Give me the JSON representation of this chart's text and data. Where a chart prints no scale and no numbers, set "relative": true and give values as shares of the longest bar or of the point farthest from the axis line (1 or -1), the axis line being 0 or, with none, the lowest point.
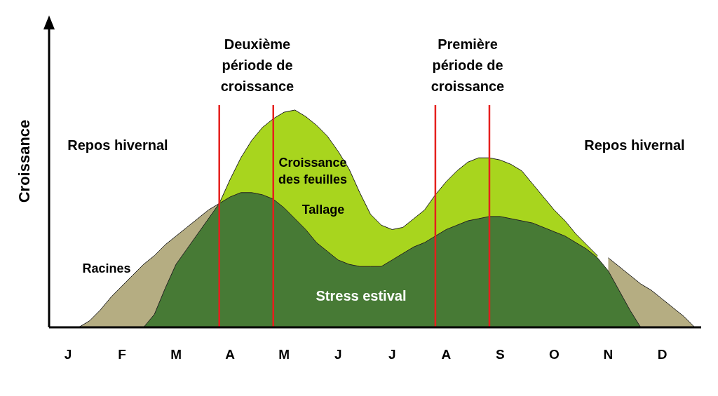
{
  "chart_data": {
    "type": "area",
    "relative": true,
    "ylabel": "Croissance",
    "categories": [
      "J",
      null,
      null,
      null,
      null,
      "F",
      null,
      null,
      null,
      null,
      "M",
      null,
      null,
      null,
      null,
      "A",
      null,
      null,
      null,
      null,
      "M",
      null,
      null,
      null,
      null,
      "J",
      null,
      null,
      null,
      null,
      "J",
      null,
      null,
      null,
      null,
      "A",
      null,
      null,
      null,
      null,
      "S",
      null,
      null,
      null,
      null,
      "O",
      null,
      null,
      null,
      null,
      "N",
      null,
      null,
      null,
      null,
      "D",
      null,
      null,
      null
    ],
    "series": [
      {
        "name": "Racines",
        "color": "#b5ad82",
        "values": [
          null,
          0,
          0.03,
          0.08,
          0.14,
          0.19,
          0.24,
          0.29,
          0.33,
          0.38,
          0.42,
          0.46,
          0.5,
          0.54,
          0.57,
          null,
          null,
          null,
          null,
          null,
          null,
          null,
          null,
          null,
          null,
          null,
          null,
          null,
          null,
          null,
          null,
          null,
          null,
          null,
          null,
          null,
          null,
          null,
          null,
          null,
          null,
          null,
          null,
          null,
          null,
          null,
          null,
          null,
          null,
          null,
          0.32,
          0.28,
          0.24,
          0.2,
          0.17,
          0.13,
          0.09,
          0.05,
          0
        ]
      },
      {
        "name": "Croissance des feuilles",
        "color": "#a8d51e",
        "values": [
          null,
          null,
          null,
          null,
          null,
          null,
          null,
          null,
          null,
          null,
          null,
          null,
          null,
          null,
          0.57,
          0.68,
          0.78,
          0.86,
          0.92,
          0.96,
          0.99,
          1,
          0.97,
          0.93,
          0.88,
          0.81,
          0.73,
          0.62,
          0.52,
          0.47,
          0.45,
          0.46,
          0.5,
          0.54,
          0.61,
          0.67,
          0.72,
          0.76,
          0.78,
          0.78,
          0.77,
          0.75,
          0.72,
          0.66,
          0.6,
          0.54,
          0.49,
          0.43,
          0.38,
          0.33,
          null,
          null,
          null,
          null,
          null,
          null,
          null,
          null,
          null
        ]
      },
      {
        "name": "Tallage",
        "color": "#477a35",
        "values": [
          null,
          null,
          null,
          null,
          null,
          null,
          null,
          0,
          0.06,
          0.18,
          0.29,
          0.36,
          0.43,
          0.5,
          0.57,
          0.6,
          0.62,
          0.62,
          0.61,
          0.59,
          0.55,
          0.5,
          0.45,
          0.39,
          0.35,
          0.31,
          0.29,
          0.28,
          0.28,
          0.28,
          0.31,
          0.34,
          0.37,
          0.39,
          0.42,
          0.45,
          0.47,
          0.49,
          0.5,
          0.51,
          0.51,
          0.5,
          0.49,
          0.48,
          0.46,
          0.44,
          0.42,
          0.39,
          0.36,
          0.32,
          0.26,
          0.17,
          0.08,
          0,
          null,
          null,
          null,
          null,
          null
        ]
      }
    ],
    "annotations": [
      "Deuxième période de croissance",
      "Première période de croissance",
      "Repos hivernal",
      "Repos hivernal",
      "Stress estival"
    ]
  }
}
